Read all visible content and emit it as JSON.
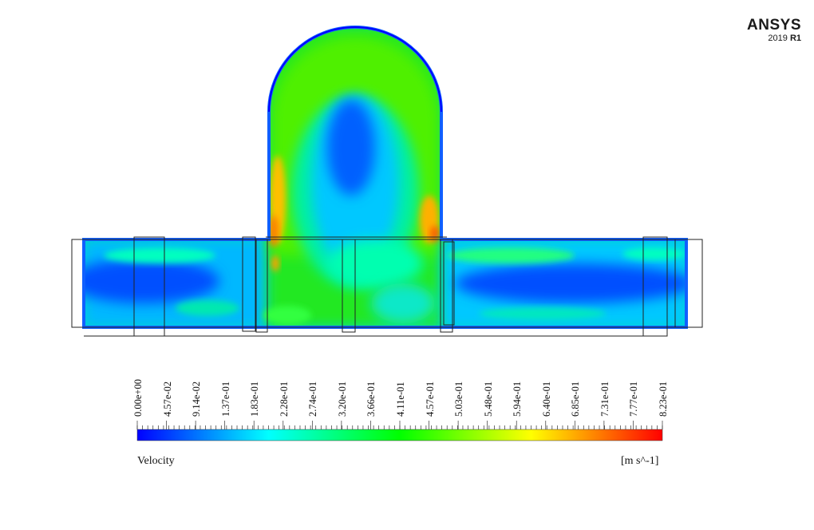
{
  "logo": {
    "brand": "ANSYS",
    "version": "2019",
    "release": "R1"
  },
  "colorbar": {
    "variable": "Velocity",
    "unit": "[m s^-1]",
    "ticks": [
      "0.00e+00",
      "4.57e-02",
      "9.14e-02",
      "1.37e-01",
      "1.83e-01",
      "2.28e-01",
      "2.74e-01",
      "3.20e-01",
      "3.66e-01",
      "4.11e-01",
      "4.57e-01",
      "5.03e-01",
      "5.48e-01",
      "5.94e-01",
      "6.40e-01",
      "6.85e-01",
      "7.31e-01",
      "7.77e-01",
      "8.23e-01"
    ],
    "colors": [
      "#0000ff",
      "#0080ff",
      "#00ffff",
      "#00ff80",
      "#00ff00",
      "#80ff00",
      "#ffff00",
      "#ff8000",
      "#ff0000"
    ]
  }
}
